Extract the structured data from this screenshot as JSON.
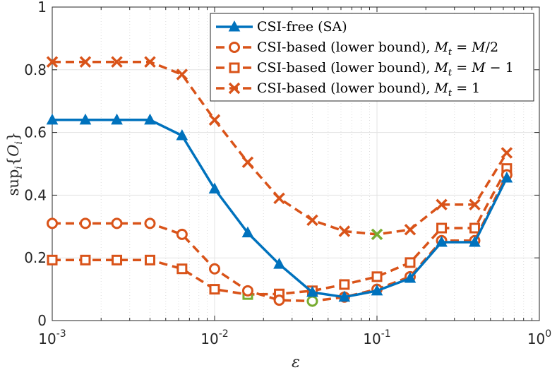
{
  "chart_data": {
    "type": "line",
    "title": "",
    "xlabel": "ε",
    "ylabel": "sup_i{O_i}",
    "xscale": "log",
    "xlim": [
      0.001,
      1
    ],
    "ylim": [
      0,
      1
    ],
    "grid": true,
    "minor_grid": true,
    "legend_position": "top-right",
    "x_ticks": [
      {
        "value": 0.001,
        "base": "10",
        "exp": "-3"
      },
      {
        "value": 0.01,
        "base": "10",
        "exp": "-2"
      },
      {
        "value": 0.1,
        "base": "10",
        "exp": "-1"
      },
      {
        "value": 1,
        "base": "10",
        "exp": "0"
      }
    ],
    "y_ticks": [
      {
        "value": 0,
        "label": "0"
      },
      {
        "value": 0.2,
        "label": "0.2"
      },
      {
        "value": 0.4,
        "label": "0.4"
      },
      {
        "value": 0.6,
        "label": "0.6"
      },
      {
        "value": 0.8,
        "label": "0.8"
      },
      {
        "value": 1,
        "label": "1"
      }
    ],
    "x": [
      0.001,
      0.0016,
      0.0025,
      0.004,
      0.0063,
      0.01,
      0.016,
      0.025,
      0.04,
      0.063,
      0.1,
      0.16,
      0.25,
      0.4,
      0.63
    ],
    "series": [
      {
        "name": "CSI-free (SA)",
        "color": "#0072BD",
        "marker": "triangle",
        "dashed": false,
        "values": [
          0.64,
          0.64,
          0.64,
          0.64,
          0.59,
          0.42,
          0.28,
          0.18,
          0.09,
          0.075,
          0.095,
          0.135,
          0.25,
          0.25,
          0.455
        ],
        "highlight": []
      },
      {
        "name": "CSI-based (lower bound), Mt = M/2",
        "color": "#D95319",
        "marker": "circle",
        "dashed": true,
        "values": [
          0.31,
          0.31,
          0.31,
          0.31,
          0.275,
          0.165,
          0.095,
          0.065,
          0.062,
          0.075,
          0.1,
          0.14,
          0.255,
          0.255,
          0.465
        ],
        "highlight": [
          8
        ]
      },
      {
        "name": "CSI-based (lower bound), Mt = M − 1",
        "color": "#D95319",
        "marker": "square",
        "dashed": true,
        "values": [
          0.193,
          0.193,
          0.193,
          0.193,
          0.165,
          0.1,
          0.083,
          0.085,
          0.095,
          0.115,
          0.14,
          0.185,
          0.295,
          0.295,
          0.485
        ],
        "highlight": [
          6
        ]
      },
      {
        "name": "CSI-based (lower bound), Mt = 1",
        "color": "#D95319",
        "marker": "x",
        "dashed": true,
        "values": [
          0.825,
          0.825,
          0.825,
          0.825,
          0.785,
          0.64,
          0.505,
          0.39,
          0.32,
          0.285,
          0.275,
          0.29,
          0.37,
          0.37,
          0.535
        ],
        "highlight": [
          10
        ]
      }
    ],
    "highlight_color": "#77AC30",
    "legend": [
      {
        "prefix": "CSI-free (SA)",
        "math": []
      },
      {
        "prefix": "CSI-based (lower bound), ",
        "math": [
          "M",
          "t",
          " = ",
          "M",
          "/2"
        ]
      },
      {
        "prefix": "CSI-based (lower bound), ",
        "math": [
          "M",
          "t",
          " = ",
          "M",
          " − 1"
        ]
      },
      {
        "prefix": "CSI-based (lower bound), ",
        "math": [
          "M",
          "t",
          " = 1"
        ]
      }
    ]
  }
}
